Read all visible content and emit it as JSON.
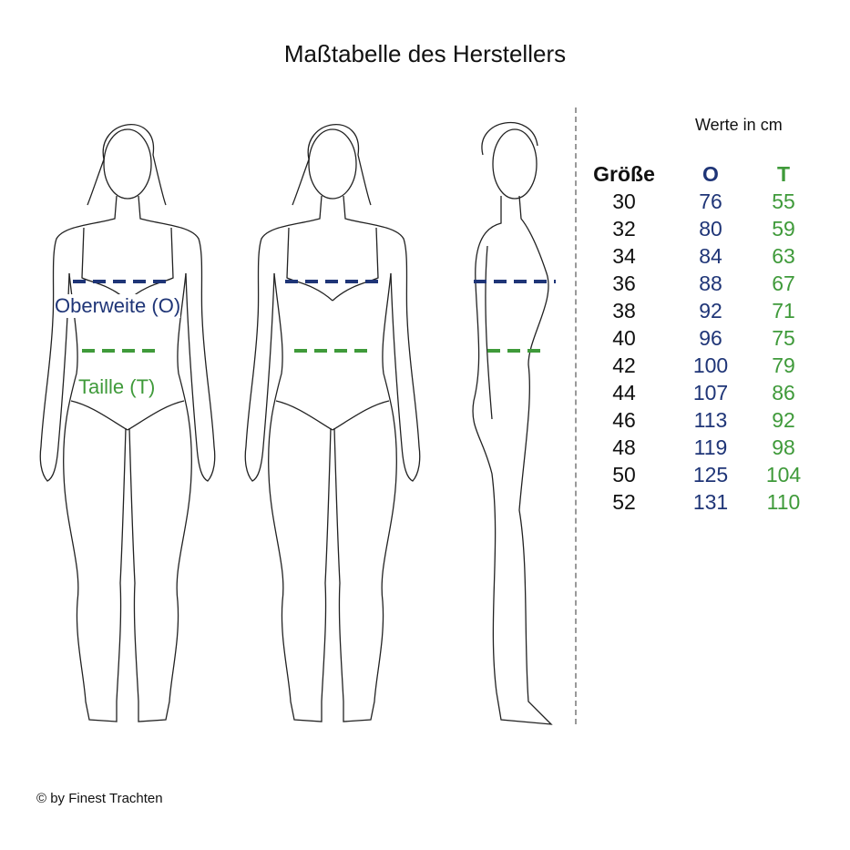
{
  "title": "Maßtabelle des Herstellers",
  "unit_note": "Werte in cm",
  "colors": {
    "oberweite": "#1f3577",
    "taille": "#3f9a3a",
    "separator": "#999999"
  },
  "labels": {
    "oberweite": "Oberweite (O)",
    "taille": "Taille (T)"
  },
  "table": {
    "headers": [
      "Größe",
      "O",
      "T"
    ],
    "rows": [
      [
        "30",
        "76",
        "55"
      ],
      [
        "32",
        "80",
        "59"
      ],
      [
        "34",
        "84",
        "63"
      ],
      [
        "36",
        "88",
        "67"
      ],
      [
        "38",
        "92",
        "71"
      ],
      [
        "40",
        "96",
        "75"
      ],
      [
        "42",
        "100",
        "79"
      ],
      [
        "44",
        "107",
        "86"
      ],
      [
        "46",
        "113",
        "92"
      ],
      [
        "48",
        "119",
        "98"
      ],
      [
        "50",
        "125",
        "104"
      ],
      [
        "52",
        "131",
        "110"
      ]
    ]
  },
  "footer": "© by Finest Trachten"
}
